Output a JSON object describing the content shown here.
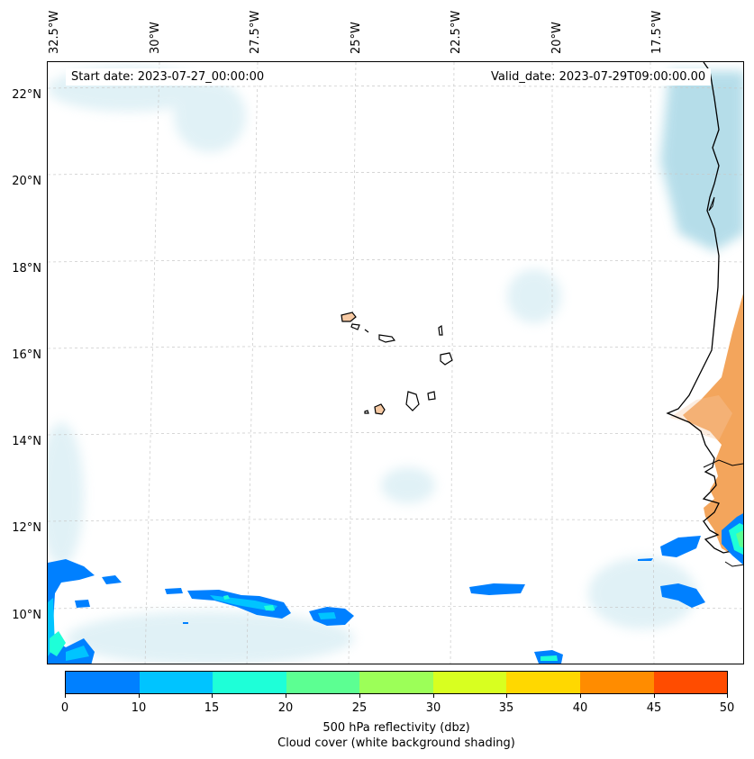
{
  "annotations": {
    "start_date": "Start date: 2023-07-27_00:00:00",
    "valid_date": "Valid_date: 2023-07-29T09:00:00.00"
  },
  "axes": {
    "longitude_labels": [
      "32.5°W",
      "30°W",
      "27.5°W",
      "25°W",
      "22.5°W",
      "20°W",
      "17.5°W"
    ],
    "latitude_labels": [
      "22°N",
      "20°N",
      "18°N",
      "16°N",
      "14°N",
      "12°N",
      "10°N"
    ]
  },
  "colorbar": {
    "ticks": [
      "0",
      "10",
      "15",
      "20",
      "25",
      "30",
      "35",
      "40",
      "45",
      "50"
    ],
    "colors": [
      "#0080ff",
      "#00c4ff",
      "#1effd8",
      "#5cff92",
      "#9cff58",
      "#d8ff20",
      "#ffd800",
      "#ff8c00",
      "#ff4c00"
    ],
    "label_line1": "500 hPa reflectivity (dbz)",
    "label_line2": "Cloud cover (white background shading)"
  },
  "map_colors": {
    "land": "#f3a55c",
    "cloud": "#a9d8e6",
    "coast": "#000000",
    "gridline": "#c8c8c8"
  }
}
